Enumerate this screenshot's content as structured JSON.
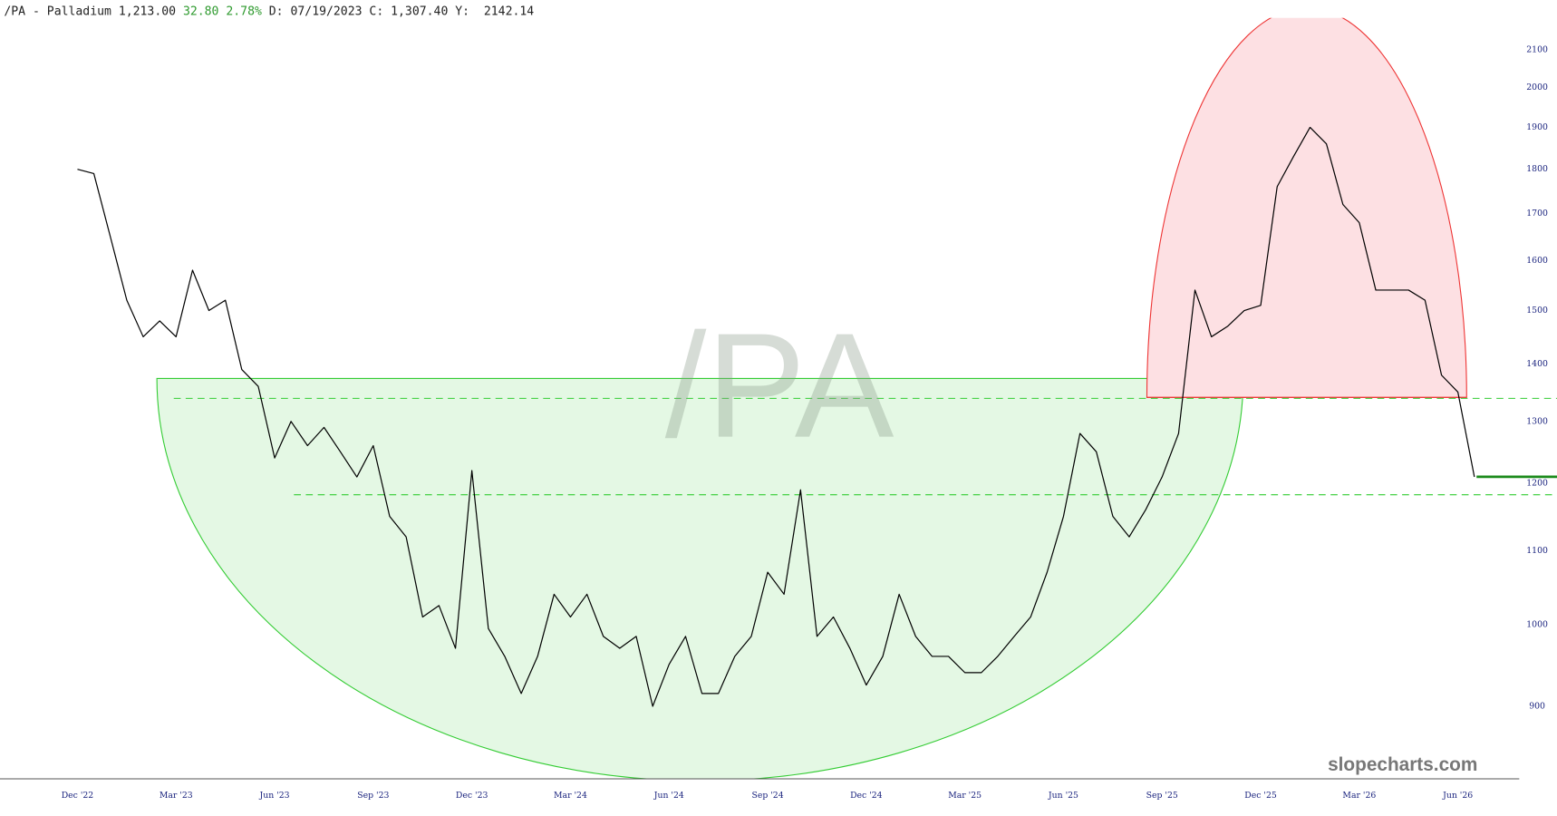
{
  "chart_data": {
    "type": "line",
    "header": {
      "symbol": "/PA - Palladium",
      "last": "1,213.00",
      "change": "32.80",
      "change_pct": "2.78%",
      "date": "D: 07/19/2023",
      "close": "C: 1,307.40",
      "cursor": "Y:  2142.14"
    },
    "watermark": "/PA",
    "brand": "slopecharts.com",
    "categories": [
      "Dec '22",
      null,
      null,
      null,
      null,
      null,
      "Mar '23",
      null,
      null,
      null,
      null,
      null,
      "Jun '23",
      null,
      null,
      null,
      null,
      null,
      "Sep '23",
      null,
      null,
      null,
      null,
      null,
      "Dec '23",
      null,
      null,
      null,
      null,
      null,
      "Mar '24",
      null,
      null,
      null,
      null,
      null,
      "Jun '24",
      null,
      null,
      null,
      null,
      null,
      "Sep '24",
      null,
      null,
      null,
      null,
      null,
      "Dec '24",
      null,
      null,
      null,
      null,
      null,
      "Mar '25",
      null,
      null,
      null,
      null,
      null,
      "Jun '25",
      null,
      null,
      null,
      null,
      null,
      "Sep '25",
      null,
      null,
      null,
      null,
      null,
      "Dec '25",
      null,
      null,
      null,
      null,
      null,
      "Mar '26",
      null,
      null,
      null,
      null,
      null,
      "Jun '26",
      null
    ],
    "values": [
      1800,
      1790,
      1650,
      1520,
      1450,
      1480,
      1450,
      1580,
      1500,
      1520,
      1390,
      1360,
      1240,
      1300,
      1260,
      1290,
      1250,
      1210,
      1260,
      1150,
      1120,
      1010,
      1025,
      970,
      1220,
      995,
      960,
      915,
      960,
      1040,
      1010,
      1040,
      985,
      970,
      985,
      900,
      950,
      985,
      915,
      915,
      960,
      985,
      1070,
      1040,
      1190,
      985,
      1010,
      970,
      925,
      960,
      1040,
      985,
      960,
      960,
      940,
      940,
      960,
      985,
      1010,
      1070,
      1150,
      1280,
      1250,
      1150,
      1120,
      1160,
      1210,
      1280,
      1540,
      1450,
      1470,
      1500,
      1510,
      1760,
      1830,
      1900,
      1860,
      1720,
      1680,
      1540,
      1540,
      1540,
      1520,
      1380,
      1350,
      1210
    ],
    "line_color": "#000000",
    "ylim": [
      820,
      2190
    ],
    "yticks": [
      900,
      1000,
      1100,
      1200,
      1300,
      1400,
      1500,
      1600,
      1700,
      1800,
      1900,
      2000,
      2100
    ],
    "log_scale": true,
    "grid": false
  }
}
